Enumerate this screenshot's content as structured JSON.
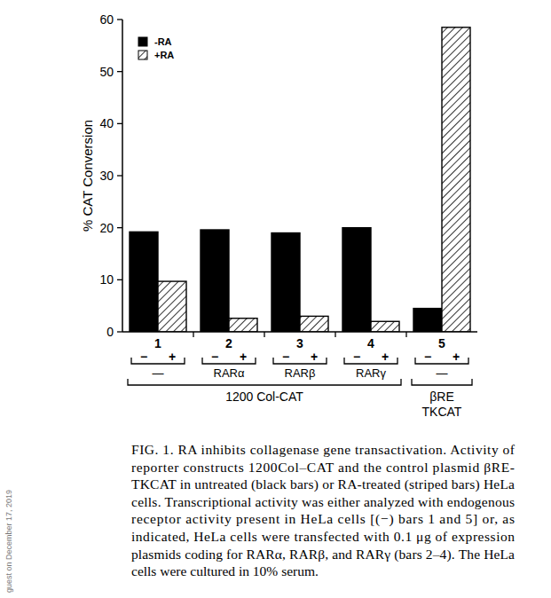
{
  "chart_data": {
    "type": "bar",
    "categories": [
      "1",
      "2",
      "3",
      "4",
      "5"
    ],
    "series": [
      {
        "name": "-RA",
        "color": "#000000",
        "line_style": "solid",
        "values": [
          19.2,
          19.6,
          19.0,
          20.0,
          4.5
        ]
      },
      {
        "name": "+RA",
        "color": "#000000",
        "line_style": "hatched",
        "values": [
          9.7,
          2.6,
          3.0,
          2.0,
          58.5
        ]
      }
    ],
    "ylabel": "% CAT Conversion",
    "ylim": [
      0,
      60
    ],
    "yticks": [
      0,
      10,
      20,
      30,
      40,
      50,
      60
    ],
    "legend": "upper-left",
    "grid": false,
    "group_signs": [
      "−",
      "+"
    ],
    "receptors": [
      "—",
      "RARα",
      "RARβ",
      "RARγ",
      "—"
    ],
    "constructs": [
      {
        "lines": [
          "1200 Col-CAT"
        ],
        "span": [
          0,
          3
        ]
      },
      {
        "lines": [
          "βRE",
          "TKCAT"
        ],
        "span": [
          4,
          4
        ]
      }
    ],
    "caption": [
      "FIG. 1.  RA inhibits collagenase gene transactivation. Activity of",
      "reporter constructs 1200Col–CAT and the control plasmid βRE-",
      "TKCAT in untreated (black bars) or RA-treated (striped bars) HeLa",
      "cells. Transcriptional activity was either analyzed with endogenous",
      "receptor activity present in HeLa cells [(−) bars 1 and 5] or, as",
      "indicated, HeLa cells were transfected with 0.1 μg of expression",
      "plasmids coding for RARα, RARβ, and RARγ (bars 2–4). The HeLa",
      "cells were cultured in 10% serum."
    ],
    "watermark": "guest on December 17, 2019"
  }
}
